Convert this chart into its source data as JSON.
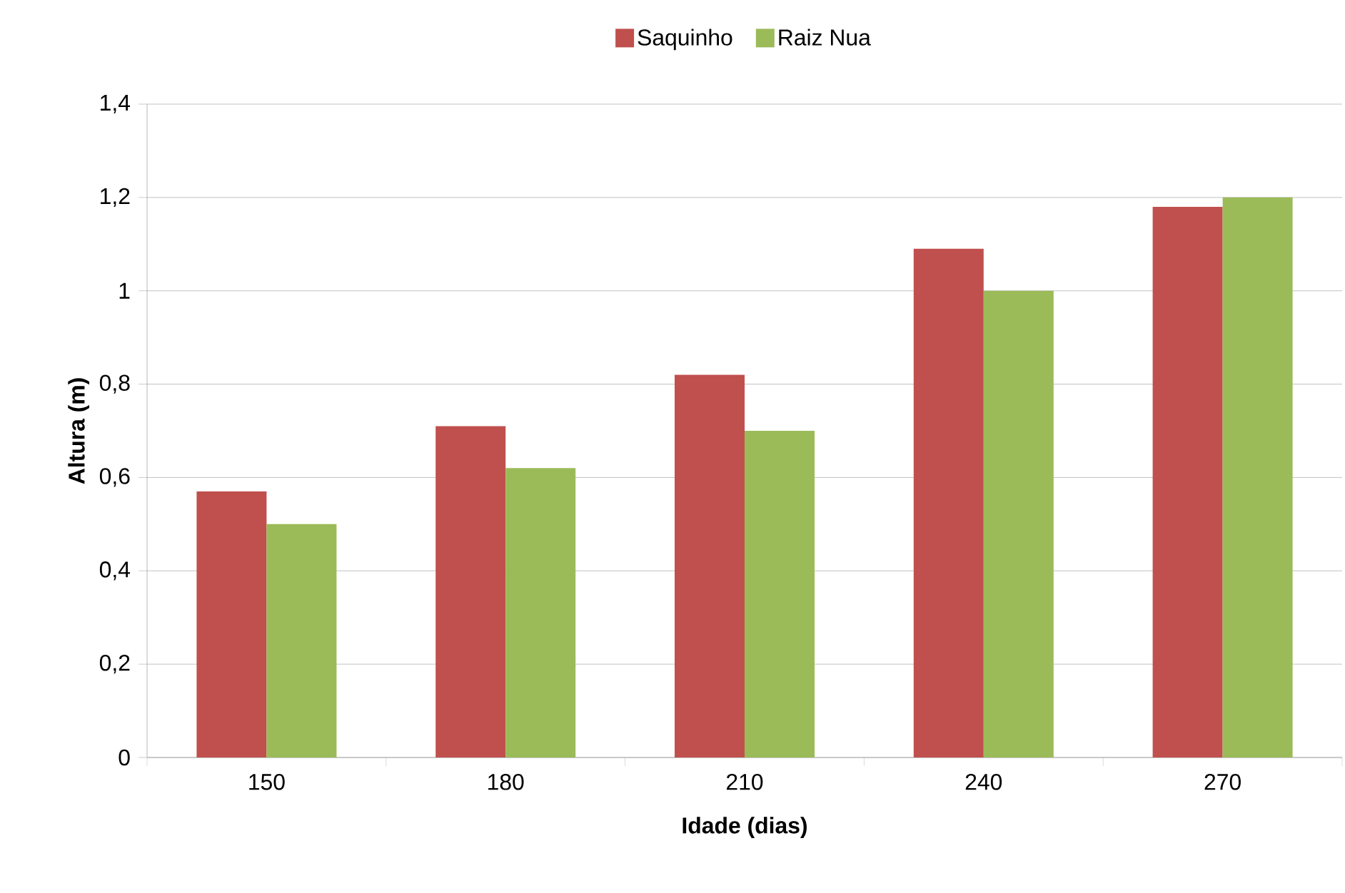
{
  "chart_data": {
    "type": "bar",
    "xlabel": "Idade (dias)",
    "ylabel": "Altura (m)",
    "categories": [
      "150",
      "180",
      "210",
      "240",
      "270"
    ],
    "series": [
      {
        "name": "Saquinho",
        "color": "#c0504d",
        "values": [
          0.57,
          0.71,
          0.82,
          1.09,
          1.18
        ]
      },
      {
        "name": "Raiz Nua",
        "color": "#9bbb59",
        "values": [
          0.5,
          0.62,
          0.7,
          1.0,
          1.2
        ]
      }
    ],
    "ylim": [
      0,
      1.4
    ],
    "yticks": [
      0,
      {
        "value": 0.2,
        "label": "0,2"
      },
      {
        "value": 0.4,
        "label": "0,4"
      },
      {
        "value": 0.6,
        "label": "0,6"
      },
      {
        "value": 0.8,
        "label": "0,8"
      },
      1,
      {
        "value": 1.2,
        "label": "1,2"
      },
      {
        "value": 1.4,
        "label": "1,4"
      }
    ],
    "grid": "y",
    "legend": "top"
  }
}
